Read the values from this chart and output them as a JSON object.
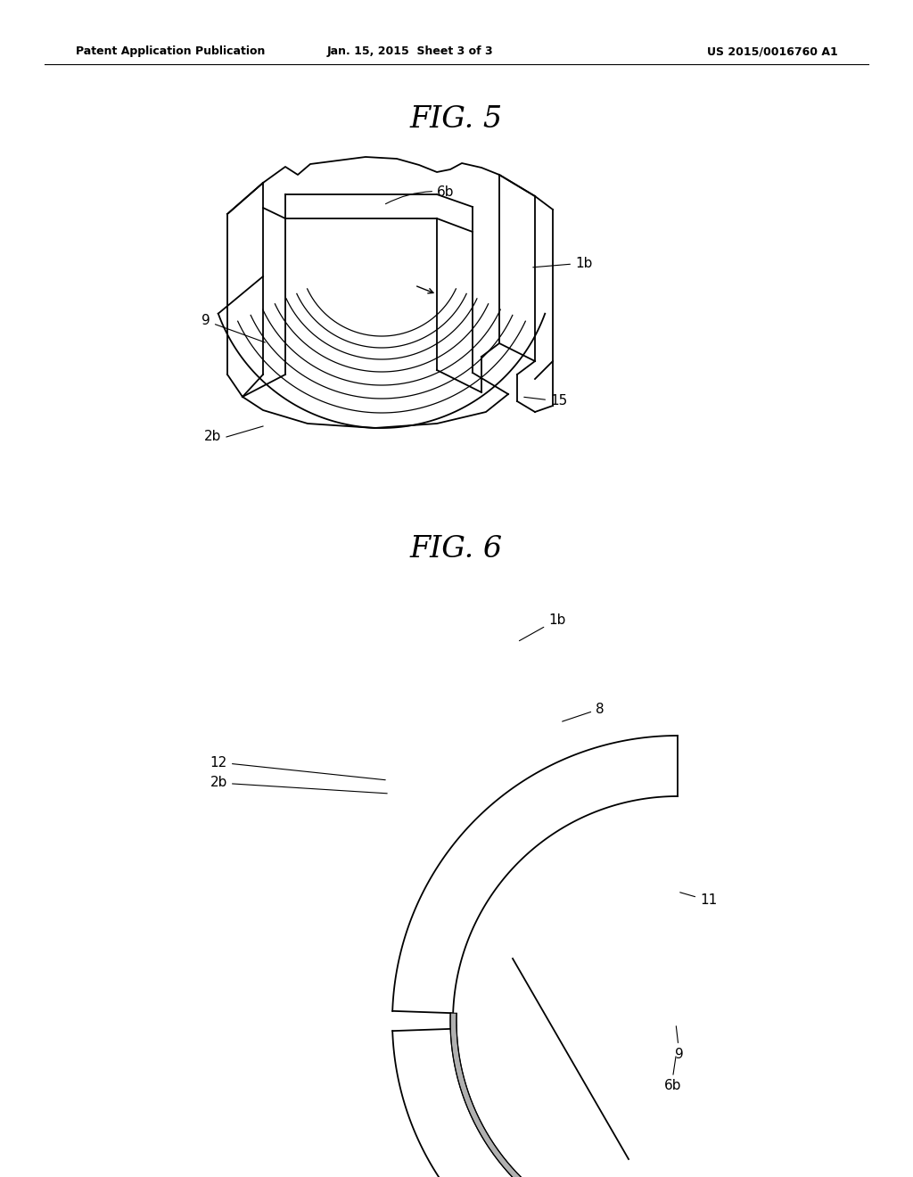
{
  "bg_color": "#ffffff",
  "line_color": "#000000",
  "header_left": "Patent Application Publication",
  "header_mid": "Jan. 15, 2015  Sheet 3 of 3",
  "header_right": "US 2015/0016760 A1",
  "fig5_title": "FIG. 5",
  "fig6_title": "FIG. 6",
  "lw": 1.3,
  "label_fs": 11,
  "header_fs": 9,
  "title_fs": 24
}
